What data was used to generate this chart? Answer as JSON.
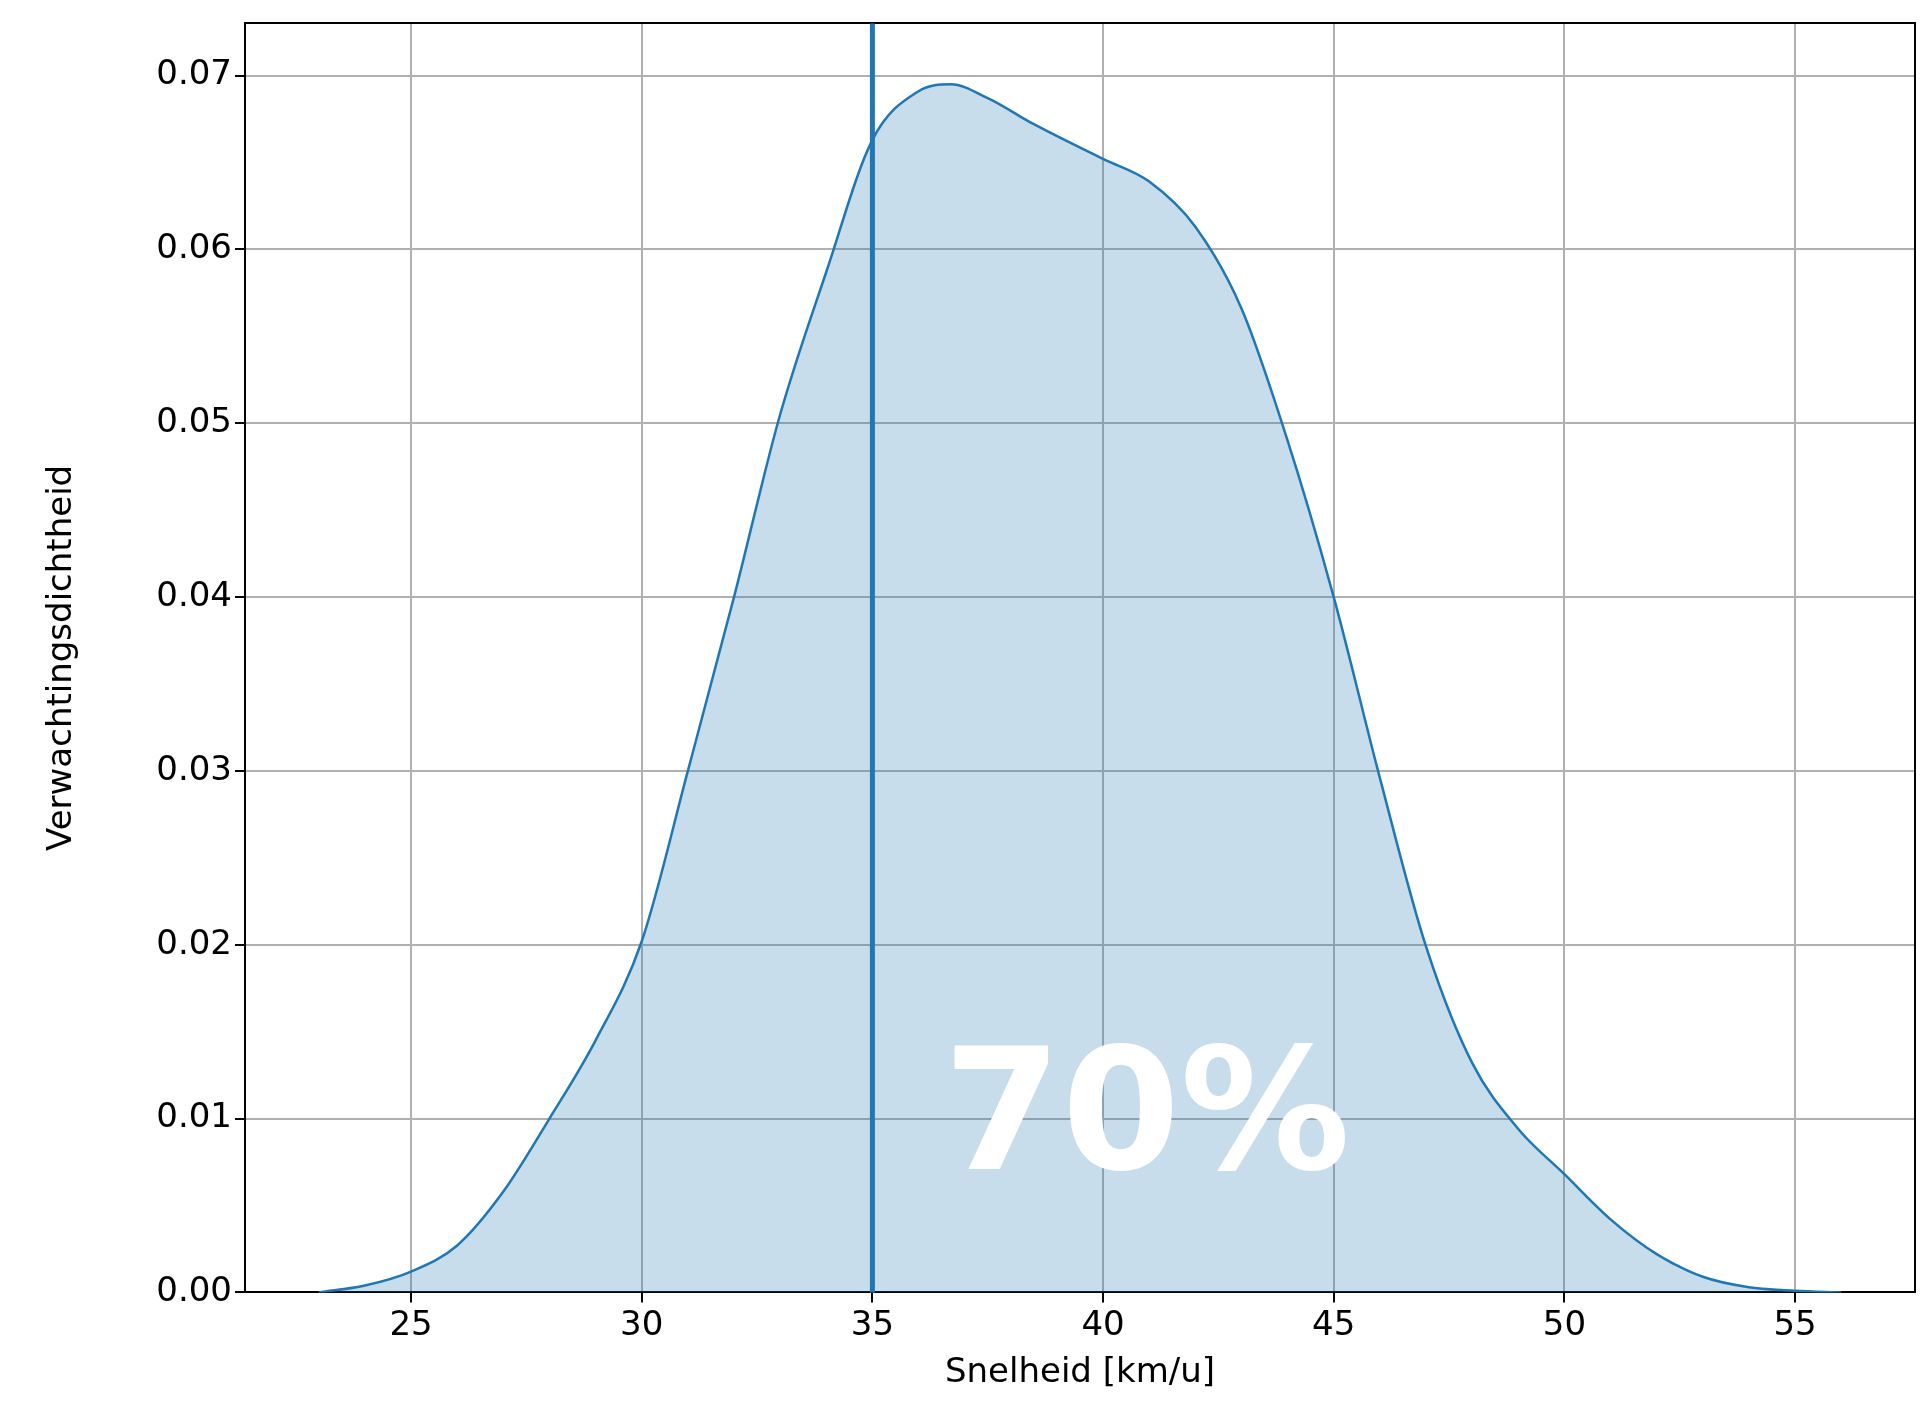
{
  "chart_data": {
    "type": "area",
    "xlabel": "Snelheid [km/u]",
    "ylabel": "Verwachtingsdichtheid",
    "x": [
      23,
      24,
      25,
      26,
      27,
      28,
      29,
      30,
      31,
      32,
      33,
      34,
      35,
      36,
      36.7,
      37.5,
      38.5,
      40,
      41,
      42,
      43,
      44,
      45,
      46,
      47,
      48,
      49,
      50,
      51,
      52,
      53,
      54,
      55,
      56
    ],
    "values": [
      0,
      0.0004,
      0.0012,
      0.0027,
      0.0058,
      0.01,
      0.0145,
      0.0202,
      0.03,
      0.04,
      0.0505,
      0.0587,
      0.0663,
      0.0691,
      0.0695,
      0.0687,
      0.0672,
      0.0652,
      0.0639,
      0.0613,
      0.0566,
      0.049,
      0.04,
      0.0296,
      0.0199,
      0.0132,
      0.0094,
      0.0068,
      0.0042,
      0.0022,
      0.0009,
      0.0003,
      0.0001,
      0
    ],
    "color": "#1f77b4",
    "xlim": [
      21.4,
      57.6
    ],
    "ylim": [
      0,
      0.073
    ],
    "xticks": [
      25,
      30,
      35,
      40,
      45,
      50,
      55
    ],
    "yticks": [
      {
        "value": 0,
        "label": "0.00"
      },
      {
        "value": 0.01,
        "label": "0.01"
      },
      {
        "value": 0.02,
        "label": "0.02"
      },
      {
        "value": 0.03,
        "label": "0.03"
      },
      {
        "value": 0.04,
        "label": "0.04"
      },
      {
        "value": 0.05,
        "label": "0.05"
      },
      {
        "value": 0.06,
        "label": "0.06"
      },
      {
        "value": 0.07,
        "label": "0.07"
      }
    ],
    "grid": true,
    "ref_lines": [
      {
        "axis": "x",
        "value": 35,
        "color": "#1f77b4"
      }
    ],
    "annotations": [
      "70%"
    ]
  }
}
